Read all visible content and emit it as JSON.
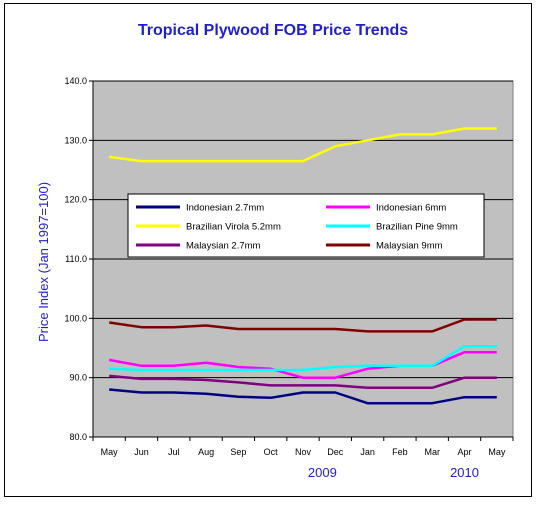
{
  "chart_data": {
    "type": "line",
    "title": "Tropical Plywood FOB Price Trends",
    "ylabel": "Price Index (Jan 1997=100)",
    "xlabel": "",
    "ylim": [
      80,
      140
    ],
    "yticks": [
      "80.0",
      "90.0",
      "100.0",
      "110.0",
      "120.0",
      "130.0",
      "140.0"
    ],
    "categories": [
      "May",
      "Jun",
      "Jul",
      "Aug",
      "Sep",
      "Oct",
      "Nov",
      "Dec",
      "Jan",
      "Feb",
      "Mar",
      "Apr",
      "May"
    ],
    "year_labels": [
      "2009",
      "2010"
    ],
    "grid": true,
    "legend_position": "inside-upper-middle",
    "series": [
      {
        "name": "Indonesian 2.7mm",
        "color": "#000080",
        "values": [
          88.0,
          87.5,
          87.5,
          87.3,
          86.8,
          86.6,
          87.5,
          87.5,
          85.7,
          85.7,
          85.7,
          86.7,
          86.7
        ]
      },
      {
        "name": "Indonesian 6mm",
        "color": "#ff00ff",
        "values": [
          93.0,
          92.0,
          92.0,
          92.5,
          91.8,
          91.5,
          90.0,
          90.0,
          91.5,
          92.0,
          92.0,
          94.3,
          94.3
        ]
      },
      {
        "name": "Brazilian Virola 5.2mm",
        "color": "#ffff00",
        "values": [
          127.2,
          126.5,
          126.5,
          126.5,
          126.5,
          126.5,
          126.5,
          129.0,
          130.0,
          131.0,
          131.0,
          132.0,
          132.0
        ]
      },
      {
        "name": "Brazilian Pine 9mm",
        "color": "#00ffff",
        "values": [
          91.5,
          91.3,
          91.3,
          91.3,
          91.3,
          91.3,
          91.3,
          91.8,
          92.0,
          92.0,
          92.0,
          95.3,
          95.3
        ]
      },
      {
        "name": "Malaysian 2.7mm",
        "color": "#800080",
        "values": [
          90.3,
          89.8,
          89.8,
          89.6,
          89.2,
          88.7,
          88.7,
          88.7,
          88.3,
          88.3,
          88.3,
          90.0,
          90.0
        ]
      },
      {
        "name": "Malaysian 9mm",
        "color": "#800000",
        "values": [
          99.3,
          98.5,
          98.5,
          98.8,
          98.2,
          98.2,
          98.2,
          98.2,
          97.8,
          97.8,
          97.8,
          99.8,
          99.8
        ]
      }
    ]
  }
}
